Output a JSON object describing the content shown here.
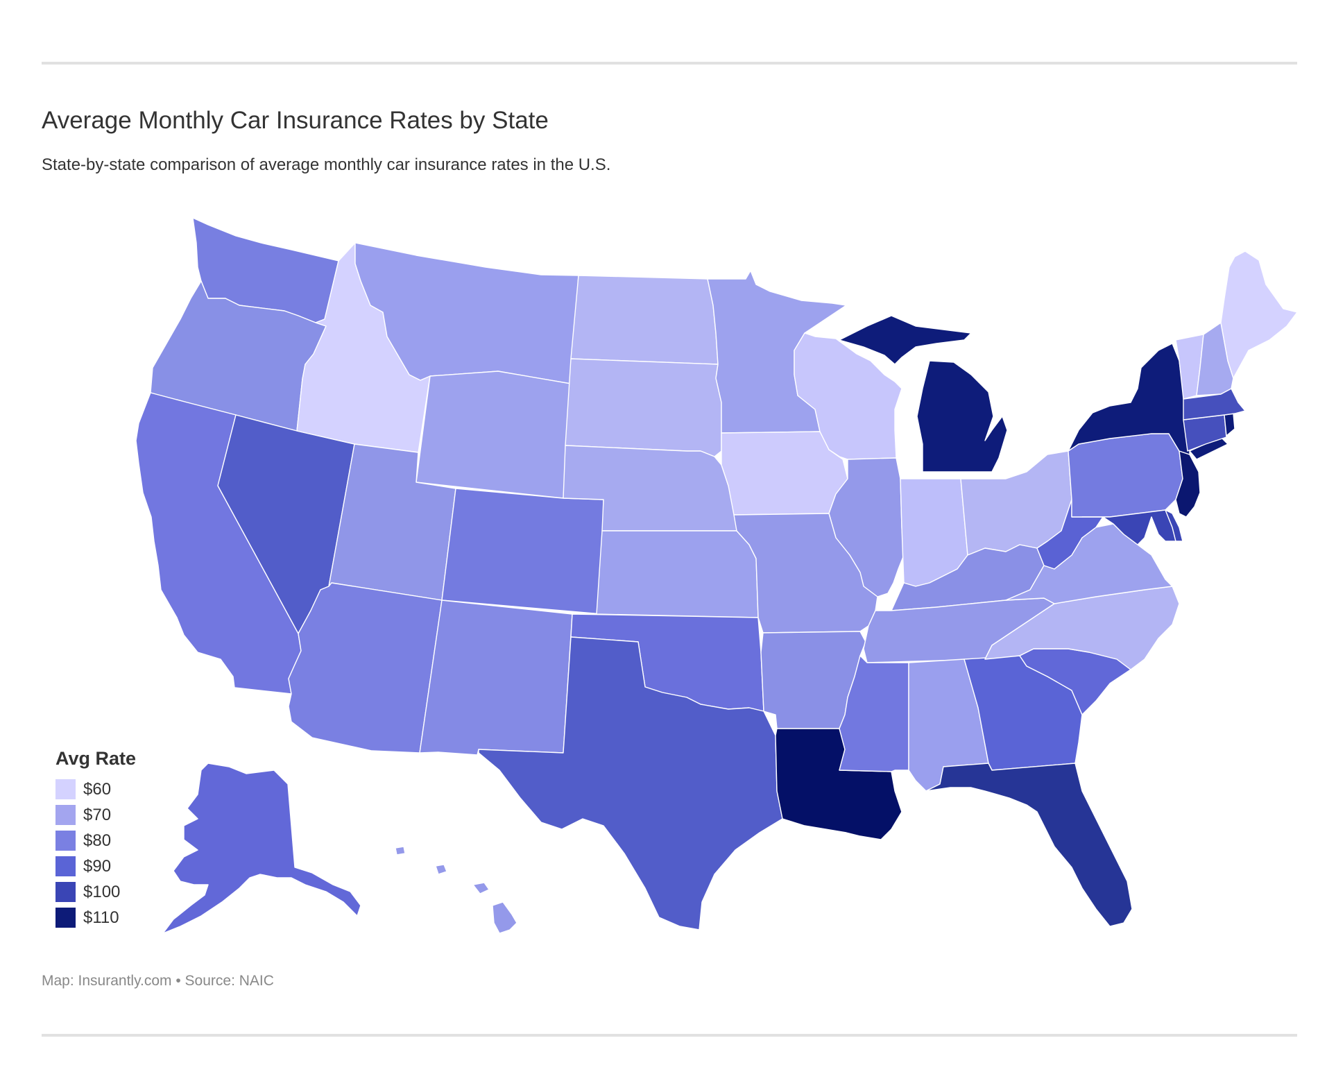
{
  "header": {
    "title": "Average Monthly Car Insurance Rates by State",
    "subtitle": "State-by-state comparison of average monthly car insurance rates in the U.S."
  },
  "legend": {
    "title": "Avg Rate",
    "items": [
      {
        "label": "$60",
        "color": "#d4d2ff"
      },
      {
        "label": "$70",
        "color": "#a3a5ef"
      },
      {
        "label": "$80",
        "color": "#7a80e2"
      },
      {
        "label": "$90",
        "color": "#5a64d6"
      },
      {
        "label": "$100",
        "color": "#3a45b5"
      },
      {
        "label": "$110",
        "color": "#0d1b78"
      }
    ]
  },
  "footer": {
    "credit": "Map: Insurantly.com • Source: NAIC"
  },
  "map_data": {
    "type": "choropleth",
    "region": "United States",
    "color_scale": [
      "#d4d2ff",
      "#0d1b78"
    ],
    "states": [
      {
        "state": "WA",
        "color": "#787fe1"
      },
      {
        "state": "OR",
        "color": "#8890e6"
      },
      {
        "state": "CA",
        "color": "#7277e0"
      },
      {
        "state": "NV",
        "color": "#525dc9"
      },
      {
        "state": "ID",
        "color": "#d4d2ff"
      },
      {
        "state": "MT",
        "color": "#9a9fee"
      },
      {
        "state": "WY",
        "color": "#9da2ee"
      },
      {
        "state": "UT",
        "color": "#9096e8"
      },
      {
        "state": "AZ",
        "color": "#7a80e2"
      },
      {
        "state": "CO",
        "color": "#747be0"
      },
      {
        "state": "NM",
        "color": "#848ae5"
      },
      {
        "state": "ND",
        "color": "#b3b5f4"
      },
      {
        "state": "SD",
        "color": "#b3b5f4"
      },
      {
        "state": "NE",
        "color": "#a6aaf0"
      },
      {
        "state": "KS",
        "color": "#9ca1ee"
      },
      {
        "state": "OK",
        "color": "#6a70dc"
      },
      {
        "state": "TX",
        "color": "#525dc9"
      },
      {
        "state": "MN",
        "color": "#9da2ee"
      },
      {
        "state": "IA",
        "color": "#cdcbfd"
      },
      {
        "state": "MO",
        "color": "#9499ea"
      },
      {
        "state": "AR",
        "color": "#8a90e6"
      },
      {
        "state": "LA",
        "color": "#041067"
      },
      {
        "state": "WI",
        "color": "#c7c6fc"
      },
      {
        "state": "IL",
        "color": "#9499ea"
      },
      {
        "state": "MI",
        "color": "#0e1c7a"
      },
      {
        "state": "IN",
        "color": "#bdbefa"
      },
      {
        "state": "OH",
        "color": "#b4b6f4"
      },
      {
        "state": "KY",
        "color": "#8a90e6"
      },
      {
        "state": "TN",
        "color": "#9499ea"
      },
      {
        "state": "MS",
        "color": "#7278e0"
      },
      {
        "state": "AL",
        "color": "#9a9fee"
      },
      {
        "state": "GA",
        "color": "#5a64d6"
      },
      {
        "state": "FL",
        "color": "#263596"
      },
      {
        "state": "SC",
        "color": "#6168d8"
      },
      {
        "state": "NC",
        "color": "#b3b5f4"
      },
      {
        "state": "VA",
        "color": "#9da2ee"
      },
      {
        "state": "WV",
        "color": "#5a62d4"
      },
      {
        "state": "PA",
        "color": "#747be0"
      },
      {
        "state": "NY",
        "color": "#0e1c7a"
      },
      {
        "state": "NJ",
        "color": "#0b1770"
      },
      {
        "state": "MD",
        "color": "#3a45b5"
      },
      {
        "state": "DE",
        "color": "#3a45b5"
      },
      {
        "state": "CT",
        "color": "#4650bd"
      },
      {
        "state": "RI",
        "color": "#0d1b78"
      },
      {
        "state": "MA",
        "color": "#4650bd"
      },
      {
        "state": "VT",
        "color": "#c7c6fc"
      },
      {
        "state": "NH",
        "color": "#a6aaf0"
      },
      {
        "state": "ME",
        "color": "#d4d2ff"
      },
      {
        "state": "AK",
        "color": "#6268d8"
      },
      {
        "state": "HI",
        "color": "#9499ea"
      }
    ]
  }
}
